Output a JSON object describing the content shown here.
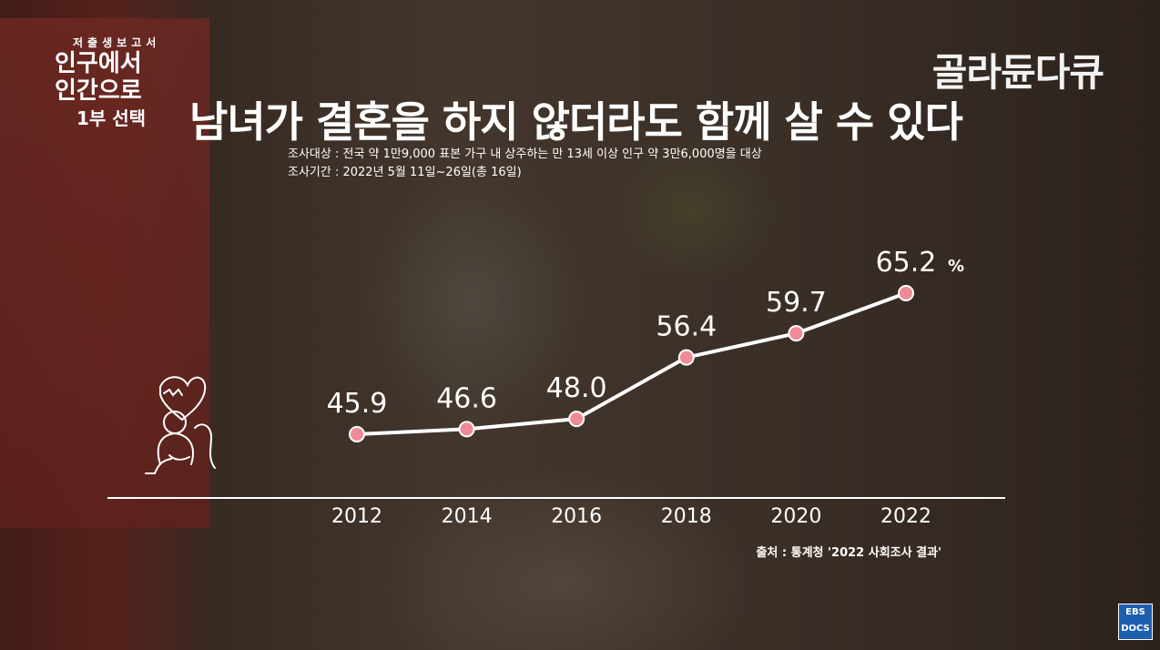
{
  "program": {
    "line0": "저출생보고서",
    "line1": "인구에서",
    "line2": "인간으로",
    "line3": "1부 선택"
  },
  "brand": "골라듄다큐",
  "survey_target": "조사대상 : 전국 약 1만9,000 표본 가구 내 상주하는 만 13세 이상 인구 약 3만6,000명을 대상",
  "survey_period": "조사기간 : 2022년 5월 11일~26일(총 16일)",
  "source": "출처 : 통계청 '2022 사회조사 결과'",
  "badge": {
    "line1": "EBS",
    "line2": "DOCS"
  },
  "colors": {
    "line": "#ffffff",
    "marker": "#f08a96",
    "text": "#ffffff"
  },
  "chart_data": {
    "type": "line",
    "title": "남녀가 결혼을 하지 않더라도 함께 살 수 있다",
    "categories": [
      "2012",
      "2014",
      "2016",
      "2018",
      "2020",
      "2022"
    ],
    "series": [
      {
        "values": [
          45.9,
          46.6,
          48.0,
          56.4,
          59.7,
          65.2
        ]
      }
    ],
    "value_labels": [
      "45.9",
      "46.6",
      "48.0",
      "56.4",
      "59.7",
      "65.2"
    ],
    "unit": "%",
    "ylim": [
      40,
      70
    ],
    "grid": false,
    "legend": "none"
  }
}
